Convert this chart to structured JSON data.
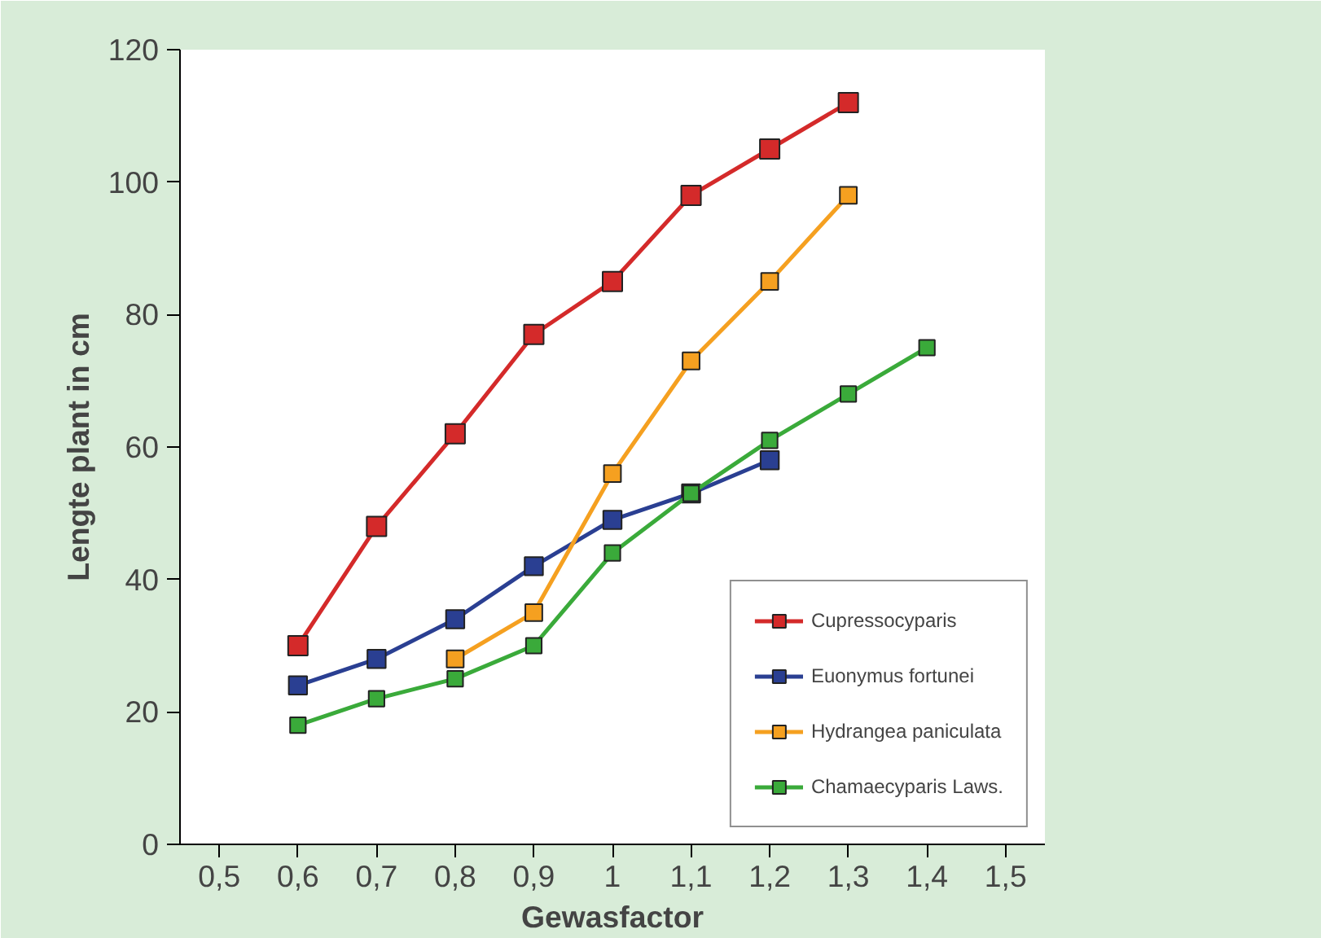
{
  "chart_data": {
    "type": "line",
    "xlabel": "Gewasfactor",
    "ylabel": "Lengte plant in cm",
    "categories": [
      "0,5",
      "0,6",
      "0,7",
      "0,8",
      "0,9",
      "1",
      "1,1",
      "1,2",
      "1,3",
      "1,4",
      "1,5"
    ],
    "series": [
      {
        "name": "Cupressocyparis",
        "color": "#d42a2a",
        "values": [
          null,
          30,
          48,
          62,
          77,
          85,
          98,
          105,
          112,
          null,
          null
        ]
      },
      {
        "name": "Euonymus fortunei",
        "color": "#2a3f92",
        "values": [
          null,
          24,
          28,
          34,
          42,
          49,
          53,
          58,
          null,
          null,
          null
        ]
      },
      {
        "name": "Hydrangea paniculata",
        "color": "#f5a020",
        "values": [
          null,
          null,
          null,
          28,
          35,
          56,
          73,
          85,
          98,
          null,
          null
        ]
      },
      {
        "name": "Chamaecyparis Laws.",
        "color": "#3aaa3a",
        "values": [
          null,
          18,
          22,
          25,
          30,
          44,
          53,
          61,
          68,
          75,
          null
        ]
      }
    ],
    "ylim": [
      0,
      120
    ],
    "yticks": [
      0,
      20,
      40,
      60,
      80,
      100,
      120
    ],
    "grid": false,
    "legend": "bottom right",
    "marker": "square",
    "line_style": "solid"
  }
}
